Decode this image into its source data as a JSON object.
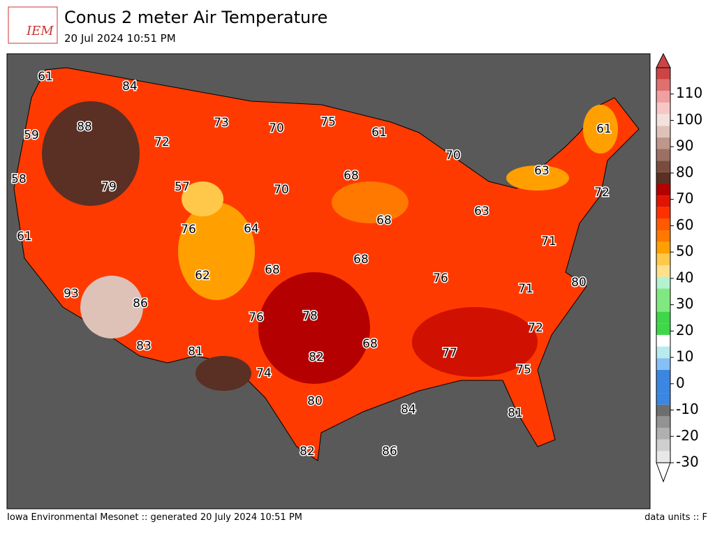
{
  "header": {
    "logo": "IEM",
    "title": "Conus 2 meter Air Temperature",
    "subtitle": "20 Jul 2024 10:51 PM"
  },
  "map": {
    "stations": [
      61,
      84,
      88,
      59,
      72,
      73,
      70,
      75,
      61,
      70,
      61,
      58,
      79,
      57,
      70,
      68,
      63,
      72,
      61,
      76,
      64,
      68,
      63,
      71,
      68,
      68,
      62,
      76,
      71,
      80,
      93,
      86,
      76,
      78,
      72,
      83,
      81,
      68,
      77,
      82,
      74,
      75,
      80,
      84,
      81,
      82,
      86
    ]
  },
  "colorbar": {
    "range": [
      -30,
      120
    ],
    "ticks": [
      -30,
      -20,
      -10,
      0,
      10,
      20,
      30,
      40,
      50,
      60,
      70,
      80,
      90,
      100,
      110
    ],
    "colors": [
      "#e8e8e8",
      "#cfcfcf",
      "#b0b0b0",
      "#939393",
      "#6e6e6e",
      "#3a86e0",
      "#3a86e0",
      "#3a86e0",
      "#86bff5",
      "#b8ecec",
      "#ffffff",
      "#3fd64a",
      "#3fd64a",
      "#80e880",
      "#80e880",
      "#b4f2d2",
      "#ffe08c",
      "#ffc84a",
      "#ffa000",
      "#ff7800",
      "#ff5a00",
      "#ff3000",
      "#e01400",
      "#b40000",
      "#5a2f24",
      "#7a4c40",
      "#9c7064",
      "#bf978a",
      "#dec2b8",
      "#f2e2dc",
      "#f7c7c7",
      "#f0a0a0",
      "#e07070",
      "#cc4444"
    ]
  },
  "footer": {
    "left": "Iowa Environmental Mesonet :: generated 20 July 2024 10:51 PM",
    "right": "data units :: F"
  }
}
